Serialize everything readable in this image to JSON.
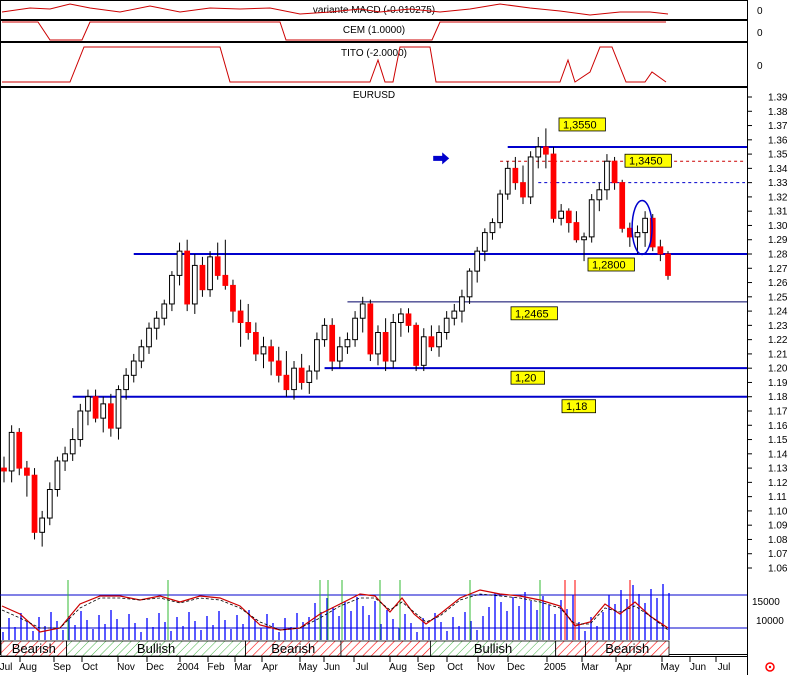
{
  "panels": {
    "macd": {
      "label": "variante MACD (-0.010275)",
      "zero": "0"
    },
    "cem": {
      "label": "CEM (1.0000)",
      "zero": "0"
    },
    "tito": {
      "label": "TITO (-2.0000)",
      "zero": "0"
    },
    "main": {
      "label": "EURUSD"
    }
  },
  "colors": {
    "up": "#ffffff",
    "down": "#ff0000",
    "wick": "#000000",
    "level_line": "#0000cc",
    "tag_bg": "#ffff00",
    "indicator_line": "#cc0000",
    "volume": "#0000ff",
    "bullish_fill": "#c8f0c8",
    "bearish_hatch": "#ff0000"
  },
  "y_axis_ticks": [
    "1.39",
    "1.38",
    "1.37",
    "1.36",
    "1.35",
    "1.34",
    "1.33",
    "1.32",
    "1.31",
    "1.30",
    "1.29",
    "1.28",
    "1.27",
    "1.26",
    "1.25",
    "1.24",
    "1.23",
    "1.22",
    "1.21",
    "1.20",
    "1.19",
    "1.18",
    "1.17",
    "1.16",
    "1.15",
    "1.14",
    "1.13",
    "1.12",
    "1.11",
    "1.10",
    "1.09",
    "1.08",
    "1.07",
    "1.06"
  ],
  "volume_ticks": [
    "15000",
    "10000"
  ],
  "x_axis_ticks": [
    "Jul",
    "Aug",
    "Sep",
    "Oct",
    "Nov",
    "Dec",
    "2004",
    "Feb",
    "Mar",
    "Apr",
    "May",
    "Jun",
    "Jul",
    "Aug",
    "Sep",
    "Oct",
    "Nov",
    "Dec",
    "2005",
    "Mar",
    "Apr",
    "May",
    "Jun",
    "Jul"
  ],
  "regimes": [
    {
      "name": "Bearish",
      "start": 0,
      "end": 11
    },
    {
      "name": "Bullish",
      "start": 11,
      "end": 41
    },
    {
      "name": "Bearish",
      "start": 41,
      "end": 57
    },
    {
      "name": "",
      "start": 57,
      "end": 72
    },
    {
      "name": "Bullish",
      "start": 72,
      "end": 93
    },
    {
      "name": "",
      "start": 93,
      "end": 98
    },
    {
      "name": "Bearish",
      "start": 98,
      "end": 112
    }
  ],
  "chart_data": {
    "type": "candlestick",
    "title": "EURUSD",
    "ylim": [
      1.05,
      1.395
    ],
    "weeks_total": 125,
    "candles": [
      {
        "o": 1.13,
        "h": 1.138,
        "l": 1.12,
        "c": 1.128
      },
      {
        "o": 1.128,
        "h": 1.16,
        "l": 1.12,
        "c": 1.155
      },
      {
        "o": 1.155,
        "h": 1.158,
        "l": 1.125,
        "c": 1.13
      },
      {
        "o": 1.13,
        "h": 1.135,
        "l": 1.11,
        "c": 1.125
      },
      {
        "o": 1.125,
        "h": 1.13,
        "l": 1.08,
        "c": 1.085
      },
      {
        "o": 1.085,
        "h": 1.1,
        "l": 1.075,
        "c": 1.095
      },
      {
        "o": 1.095,
        "h": 1.12,
        "l": 1.09,
        "c": 1.115
      },
      {
        "o": 1.115,
        "h": 1.138,
        "l": 1.11,
        "c": 1.135
      },
      {
        "o": 1.135,
        "h": 1.145,
        "l": 1.128,
        "c": 1.14
      },
      {
        "o": 1.14,
        "h": 1.158,
        "l": 1.135,
        "c": 1.15
      },
      {
        "o": 1.15,
        "h": 1.175,
        "l": 1.145,
        "c": 1.17
      },
      {
        "o": 1.17,
        "h": 1.185,
        "l": 1.16,
        "c": 1.18
      },
      {
        "o": 1.18,
        "h": 1.185,
        "l": 1.162,
        "c": 1.165
      },
      {
        "o": 1.165,
        "h": 1.18,
        "l": 1.155,
        "c": 1.175
      },
      {
        "o": 1.175,
        "h": 1.182,
        "l": 1.152,
        "c": 1.158
      },
      {
        "o": 1.158,
        "h": 1.188,
        "l": 1.15,
        "c": 1.185
      },
      {
        "o": 1.185,
        "h": 1.2,
        "l": 1.178,
        "c": 1.195
      },
      {
        "o": 1.195,
        "h": 1.21,
        "l": 1.19,
        "c": 1.205
      },
      {
        "o": 1.205,
        "h": 1.22,
        "l": 1.2,
        "c": 1.215
      },
      {
        "o": 1.215,
        "h": 1.232,
        "l": 1.21,
        "c": 1.228
      },
      {
        "o": 1.228,
        "h": 1.24,
        "l": 1.22,
        "c": 1.235
      },
      {
        "o": 1.235,
        "h": 1.248,
        "l": 1.23,
        "c": 1.245
      },
      {
        "o": 1.245,
        "h": 1.268,
        "l": 1.24,
        "c": 1.265
      },
      {
        "o": 1.265,
        "h": 1.288,
        "l": 1.258,
        "c": 1.282
      },
      {
        "o": 1.282,
        "h": 1.29,
        "l": 1.24,
        "c": 1.245
      },
      {
        "o": 1.245,
        "h": 1.28,
        "l": 1.238,
        "c": 1.272
      },
      {
        "o": 1.272,
        "h": 1.278,
        "l": 1.25,
        "c": 1.255
      },
      {
        "o": 1.255,
        "h": 1.282,
        "l": 1.25,
        "c": 1.278
      },
      {
        "o": 1.278,
        "h": 1.288,
        "l": 1.262,
        "c": 1.265
      },
      {
        "o": 1.265,
        "h": 1.29,
        "l": 1.255,
        "c": 1.258
      },
      {
        "o": 1.258,
        "h": 1.262,
        "l": 1.232,
        "c": 1.24
      },
      {
        "o": 1.24,
        "h": 1.248,
        "l": 1.215,
        "c": 1.232
      },
      {
        "o": 1.232,
        "h": 1.245,
        "l": 1.22,
        "c": 1.225
      },
      {
        "o": 1.225,
        "h": 1.232,
        "l": 1.205,
        "c": 1.21
      },
      {
        "o": 1.21,
        "h": 1.222,
        "l": 1.2,
        "c": 1.215
      },
      {
        "o": 1.215,
        "h": 1.22,
        "l": 1.195,
        "c": 1.205
      },
      {
        "o": 1.205,
        "h": 1.215,
        "l": 1.19,
        "c": 1.195
      },
      {
        "o": 1.195,
        "h": 1.212,
        "l": 1.18,
        "c": 1.185
      },
      {
        "o": 1.185,
        "h": 1.205,
        "l": 1.178,
        "c": 1.2
      },
      {
        "o": 1.2,
        "h": 1.21,
        "l": 1.185,
        "c": 1.19
      },
      {
        "o": 1.19,
        "h": 1.202,
        "l": 1.182,
        "c": 1.198
      },
      {
        "o": 1.198,
        "h": 1.225,
        "l": 1.192,
        "c": 1.22
      },
      {
        "o": 1.22,
        "h": 1.235,
        "l": 1.215,
        "c": 1.23
      },
      {
        "o": 1.23,
        "h": 1.235,
        "l": 1.198,
        "c": 1.205
      },
      {
        "o": 1.205,
        "h": 1.222,
        "l": 1.2,
        "c": 1.215
      },
      {
        "o": 1.215,
        "h": 1.225,
        "l": 1.21,
        "c": 1.22
      },
      {
        "o": 1.22,
        "h": 1.24,
        "l": 1.215,
        "c": 1.235
      },
      {
        "o": 1.235,
        "h": 1.25,
        "l": 1.225,
        "c": 1.245
      },
      {
        "o": 1.245,
        "h": 1.248,
        "l": 1.205,
        "c": 1.21
      },
      {
        "o": 1.21,
        "h": 1.23,
        "l": 1.202,
        "c": 1.225
      },
      {
        "o": 1.225,
        "h": 1.235,
        "l": 1.198,
        "c": 1.205
      },
      {
        "o": 1.205,
        "h": 1.238,
        "l": 1.2,
        "c": 1.232
      },
      {
        "o": 1.232,
        "h": 1.242,
        "l": 1.222,
        "c": 1.238
      },
      {
        "o": 1.238,
        "h": 1.242,
        "l": 1.225,
        "c": 1.23
      },
      {
        "o": 1.23,
        "h": 1.232,
        "l": 1.198,
        "c": 1.202
      },
      {
        "o": 1.202,
        "h": 1.228,
        "l": 1.198,
        "c": 1.222
      },
      {
        "o": 1.222,
        "h": 1.23,
        "l": 1.212,
        "c": 1.215
      },
      {
        "o": 1.215,
        "h": 1.23,
        "l": 1.208,
        "c": 1.225
      },
      {
        "o": 1.225,
        "h": 1.24,
        "l": 1.22,
        "c": 1.235
      },
      {
        "o": 1.235,
        "h": 1.245,
        "l": 1.23,
        "c": 1.24
      },
      {
        "o": 1.24,
        "h": 1.255,
        "l": 1.232,
        "c": 1.25
      },
      {
        "o": 1.25,
        "h": 1.27,
        "l": 1.245,
        "c": 1.268
      },
      {
        "o": 1.268,
        "h": 1.285,
        "l": 1.26,
        "c": 1.282
      },
      {
        "o": 1.282,
        "h": 1.298,
        "l": 1.275,
        "c": 1.295
      },
      {
        "o": 1.295,
        "h": 1.305,
        "l": 1.29,
        "c": 1.302
      },
      {
        "o": 1.302,
        "h": 1.325,
        "l": 1.298,
        "c": 1.322
      },
      {
        "o": 1.322,
        "h": 1.345,
        "l": 1.318,
        "c": 1.34
      },
      {
        "o": 1.34,
        "h": 1.348,
        "l": 1.325,
        "c": 1.33
      },
      {
        "o": 1.33,
        "h": 1.342,
        "l": 1.315,
        "c": 1.32
      },
      {
        "o": 1.32,
        "h": 1.352,
        "l": 1.315,
        "c": 1.348
      },
      {
        "o": 1.348,
        "h": 1.362,
        "l": 1.34,
        "c": 1.355
      },
      {
        "o": 1.355,
        "h": 1.368,
        "l": 1.34,
        "c": 1.35
      },
      {
        "o": 1.35,
        "h": 1.355,
        "l": 1.302,
        "c": 1.305
      },
      {
        "o": 1.305,
        "h": 1.315,
        "l": 1.3,
        "c": 1.31
      },
      {
        "o": 1.31,
        "h": 1.312,
        "l": 1.295,
        "c": 1.302
      },
      {
        "o": 1.302,
        "h": 1.31,
        "l": 1.288,
        "c": 1.29
      },
      {
        "o": 1.29,
        "h": 1.295,
        "l": 1.275,
        "c": 1.292
      },
      {
        "o": 1.292,
        "h": 1.322,
        "l": 1.288,
        "c": 1.318
      },
      {
        "o": 1.318,
        "h": 1.33,
        "l": 1.31,
        "c": 1.325
      },
      {
        "o": 1.325,
        "h": 1.35,
        "l": 1.318,
        "c": 1.345
      },
      {
        "o": 1.345,
        "h": 1.348,
        "l": 1.325,
        "c": 1.33
      },
      {
        "o": 1.33,
        "h": 1.332,
        "l": 1.295,
        "c": 1.298
      },
      {
        "o": 1.298,
        "h": 1.302,
        "l": 1.285,
        "c": 1.292
      },
      {
        "o": 1.292,
        "h": 1.3,
        "l": 1.28,
        "c": 1.295
      },
      {
        "o": 1.295,
        "h": 1.31,
        "l": 1.285,
        "c": 1.305
      },
      {
        "o": 1.305,
        "h": 1.308,
        "l": 1.282,
        "c": 1.285
      },
      {
        "o": 1.285,
        "h": 1.29,
        "l": 1.275,
        "c": 1.28
      },
      {
        "o": 1.28,
        "h": 1.282,
        "l": 1.262,
        "c": 1.265
      }
    ],
    "x_map": {
      "start_week": 0,
      "end_week": 87,
      "x0": 4,
      "x1": 668
    },
    "levels": [
      {
        "value": 1.355,
        "label": "1,3550",
        "from_week": 66,
        "style": "solid"
      },
      {
        "value": 1.345,
        "label": "1,3450",
        "from_week": 65,
        "style": "dashed-red"
      },
      {
        "value": 1.33,
        "label": "",
        "from_week": 70,
        "style": "dashed-blue"
      },
      {
        "value": 1.28,
        "label": "1,2800",
        "from_week": 17,
        "style": "solid"
      },
      {
        "value": 1.2465,
        "label": "1,2465",
        "from_week": 45,
        "style": "thin"
      },
      {
        "value": 1.2,
        "label": "1,20",
        "from_week": 42,
        "style": "solid"
      },
      {
        "value": 1.18,
        "label": "1,18",
        "from_week": 9,
        "style": "solid"
      }
    ],
    "annotations": [
      {
        "type": "arrow",
        "value": 1.347,
        "week": 62
      },
      {
        "type": "ellipse",
        "value": 1.3,
        "week": 84
      }
    ]
  }
}
